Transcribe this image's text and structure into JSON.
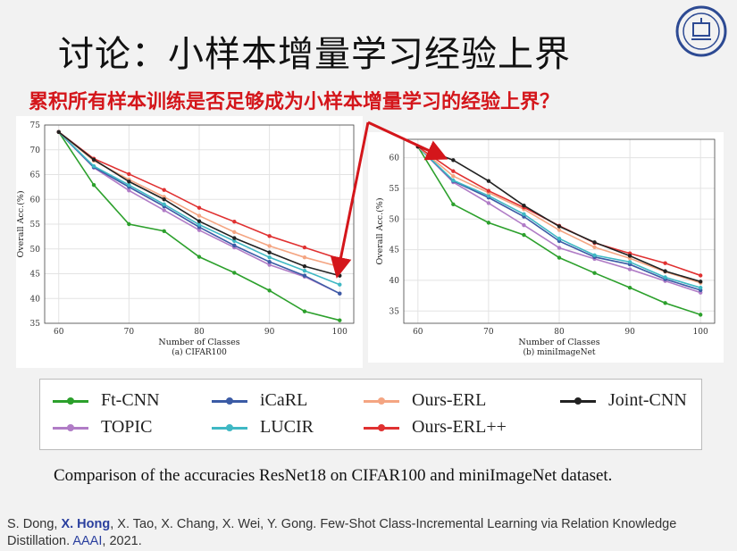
{
  "slide": {
    "title": "讨论：小样本增量学习经验上界",
    "subtitle": "累积所有样本训练是否足够成为小样本增量学习的经验上界？",
    "caption": "Comparison of the accuracies ResNet18 on CIFAR100 and miniImageNet dataset.",
    "citation": {
      "prefix": "S. Dong, ",
      "bold_author": "X. Hong",
      "authors_rest": ", X. Tao, X. Chang, X. Wei, Y. Gong. Few-Shot Class-Incremental Learning via Relation Knowledge Distillation. ",
      "venue": "AAAI",
      "year": ", 2021."
    }
  },
  "legend": [
    {
      "name": "Ft-CNN",
      "color": "#2ca02c"
    },
    {
      "name": "iCaRL",
      "color": "#3b5ba5"
    },
    {
      "name": "Ours-ERL",
      "color": "#f4a582"
    },
    {
      "name": "Joint-CNN",
      "color": "#222222"
    },
    {
      "name": "TOPIC",
      "color": "#b07cc6"
    },
    {
      "name": "LUCIR",
      "color": "#3fb8c4"
    },
    {
      "name": "Ours-ERL++",
      "color": "#e03131"
    }
  ],
  "chart_data": [
    {
      "type": "line",
      "panel": "a",
      "title": "(a) CIFAR100",
      "xlabel": "Number of Classes",
      "ylabel": "Overall Acc.(%)",
      "xlim": [
        58,
        102
      ],
      "ylim": [
        35,
        75
      ],
      "xticks": [
        60,
        70,
        80,
        90,
        100
      ],
      "yticks": [
        35,
        40,
        45,
        50,
        55,
        60,
        65,
        70,
        75
      ],
      "x": [
        60,
        65,
        70,
        75,
        80,
        85,
        90,
        95,
        100
      ],
      "series": [
        {
          "name": "Ft-CNN",
          "values": [
            73.6,
            62.9,
            55.0,
            53.6,
            48.4,
            45.2,
            41.6,
            37.4,
            35.6
          ]
        },
        {
          "name": "TOPIC",
          "values": [
            73.6,
            66.4,
            61.8,
            57.8,
            53.8,
            50.3,
            46.8,
            44.4,
            41.0
          ]
        },
        {
          "name": "iCaRL",
          "values": [
            73.6,
            66.5,
            62.5,
            58.6,
            54.4,
            50.7,
            47.4,
            44.6,
            41.0
          ]
        },
        {
          "name": "LUCIR",
          "values": [
            73.6,
            66.7,
            62.9,
            59.0,
            54.9,
            51.6,
            48.3,
            45.6,
            42.8
          ]
        },
        {
          "name": "Ours-ERL",
          "values": [
            73.6,
            67.8,
            64.0,
            60.5,
            56.7,
            53.4,
            50.6,
            48.3,
            46.4
          ]
        },
        {
          "name": "Ours-ERL++",
          "values": [
            73.6,
            68.2,
            65.1,
            61.9,
            58.3,
            55.5,
            52.6,
            50.3,
            48.0
          ]
        },
        {
          "name": "Joint-CNN",
          "values": [
            73.6,
            68.0,
            63.6,
            60.0,
            55.6,
            52.2,
            49.3,
            46.5,
            44.6
          ]
        }
      ]
    },
    {
      "type": "line",
      "panel": "b",
      "title": "(b) miniImageNet",
      "xlabel": "Number of Classes",
      "ylabel": "Overall Acc.(%)",
      "xlim": [
        58,
        102
      ],
      "ylim": [
        33,
        63
      ],
      "xticks": [
        60,
        70,
        80,
        90,
        100
      ],
      "yticks": [
        35,
        40,
        45,
        50,
        55,
        60
      ],
      "x": [
        60,
        65,
        70,
        75,
        80,
        85,
        90,
        95,
        100
      ],
      "series": [
        {
          "name": "Ft-CNN",
          "values": [
            61.8,
            52.4,
            49.4,
            47.4,
            43.7,
            41.2,
            38.8,
            36.3,
            34.4
          ]
        },
        {
          "name": "TOPIC",
          "values": [
            61.8,
            56.0,
            52.6,
            49.0,
            45.3,
            43.5,
            41.8,
            39.9,
            38.0
          ]
        },
        {
          "name": "iCaRL",
          "values": [
            61.8,
            56.2,
            53.5,
            50.4,
            46.4,
            43.8,
            42.6,
            40.2,
            38.4
          ]
        },
        {
          "name": "LUCIR",
          "values": [
            61.8,
            56.3,
            53.8,
            50.8,
            46.8,
            44.1,
            43.0,
            40.5,
            38.8
          ]
        },
        {
          "name": "Ours-ERL",
          "values": [
            61.8,
            57.0,
            54.3,
            51.6,
            48.2,
            45.4,
            43.6,
            41.4,
            39.6
          ]
        },
        {
          "name": "Ours-ERL++",
          "values": [
            61.8,
            57.8,
            54.6,
            51.9,
            48.9,
            46.1,
            44.4,
            42.8,
            40.8
          ]
        },
        {
          "name": "Joint-CNN",
          "values": [
            61.8,
            59.6,
            56.2,
            52.2,
            48.8,
            46.2,
            44.0,
            41.5,
            39.8
          ]
        }
      ]
    }
  ]
}
